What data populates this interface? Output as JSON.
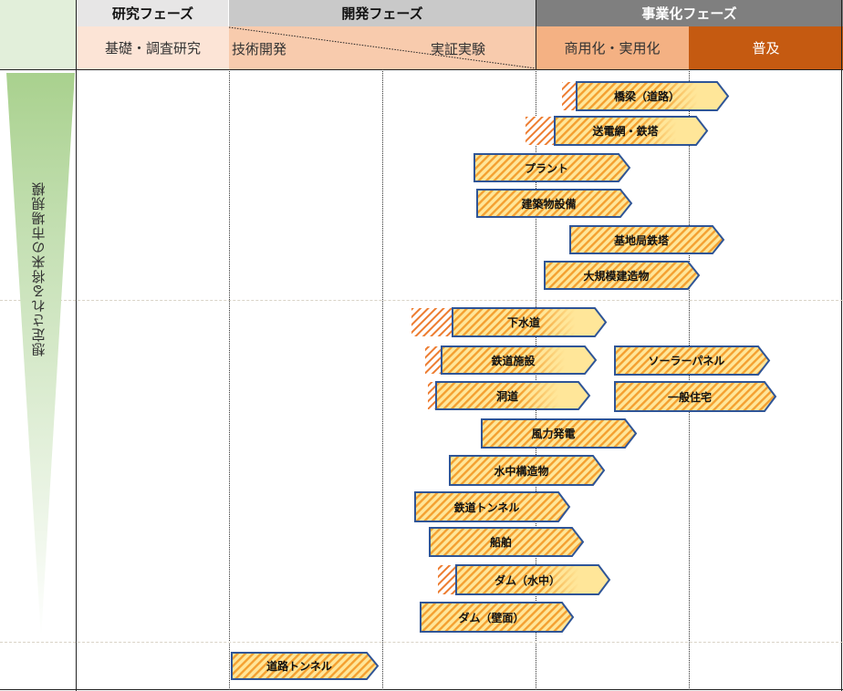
{
  "header": {
    "phases": [
      {
        "label": "研究フェーズ",
        "bg": "#E7E6E6",
        "color": "#111111"
      },
      {
        "label": "開発フェーズ",
        "bg": "#C9C9C9",
        "color": "#111111"
      },
      {
        "label": "事業化フェーズ",
        "bg": "#7F7F7F",
        "color": "#FFFFFF"
      }
    ],
    "subphases": [
      {
        "label": "基礎・調査研究",
        "bg": "#FCE4D6"
      },
      {
        "label": "技術開発",
        "bg": "#F8CBAD"
      },
      {
        "label": "実証実験",
        "bg": "#F8CBAD"
      },
      {
        "label": "商用化・実用化",
        "bg": "#F4B183"
      },
      {
        "label": "普及",
        "bg": "#C55A11"
      }
    ]
  },
  "axis_label": "想定される将来の市場規模",
  "colors": {
    "arrow_border": "#2F5597",
    "hatch": "#F4A030",
    "fill": "#FFE699",
    "tail_hatch": "#ED7D31",
    "wedge": "#A9D18E"
  },
  "arrows": [
    {
      "label": "橋梁（道路）"
    },
    {
      "label": "送電網・鉄塔"
    },
    {
      "label": "プラント"
    },
    {
      "label": "建築物設備"
    },
    {
      "label": "基地局鉄塔"
    },
    {
      "label": "大規模建造物"
    },
    {
      "label": "下水道"
    },
    {
      "label": "鉄道施設"
    },
    {
      "label": "洞道"
    },
    {
      "label": "ソーラーパネル"
    },
    {
      "label": "一般住宅"
    },
    {
      "label": "風力発電"
    },
    {
      "label": "水中構造物"
    },
    {
      "label": "鉄道トンネル"
    },
    {
      "label": "船舶"
    },
    {
      "label": "ダム（水中）"
    },
    {
      "label": "ダム（壁面）"
    },
    {
      "label": "道路トンネル"
    }
  ]
}
